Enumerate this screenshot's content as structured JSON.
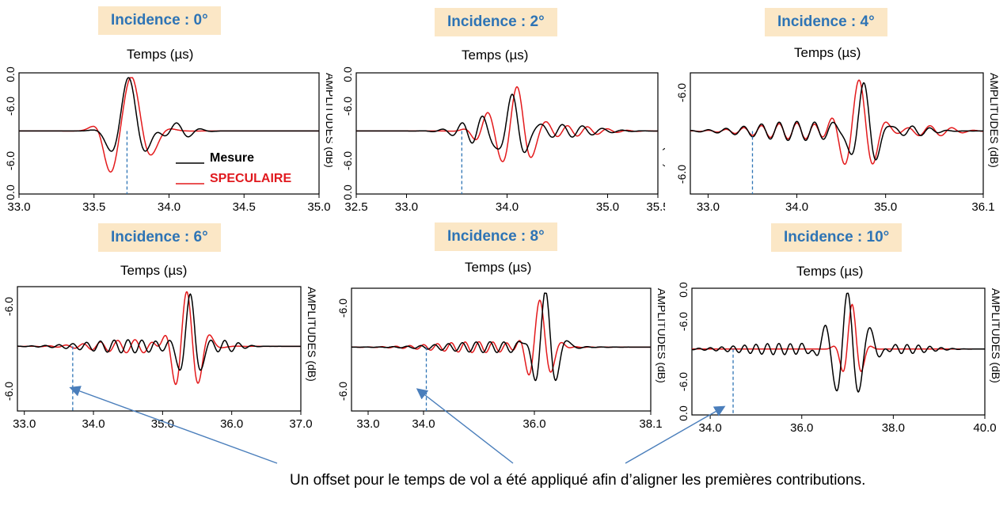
{
  "legend": {
    "mesure": "Mesure",
    "speculaire": "SPECULAIRE"
  },
  "colors": {
    "mesure": "#000000",
    "speculaire": "#e31a1c",
    "badge_bg": "#fbe7c6",
    "badge_text": "#2e74b5",
    "marker": "#2e74b5"
  },
  "footnote": "Un offset pour le temps de vol a été appliqué afin d’aligner les premières contributions.",
  "chart_data": [
    {
      "type": "line",
      "title": "Incidence : 0°",
      "xlabel": "Temps (µs)",
      "ylabel": "AMPLITUDES (dB)",
      "xlim": [
        33.0,
        35.0
      ],
      "xticks": [
        "33.0",
        "33.5",
        "34.0",
        "34.5",
        "35.0"
      ],
      "yticks": [
        "0.0",
        "-6.0",
        "-6.0",
        "0.0"
      ],
      "marker_x": 33.72,
      "legend": true
    },
    {
      "type": "line",
      "title": "Incidence : 2°",
      "xlabel": "Temps (µs)",
      "ylabel": "AMPLITUDES (dB)",
      "xlim": [
        32.5,
        35.5
      ],
      "xticks": [
        "32.5",
        "33.0",
        "34.0",
        "35.0",
        "35.5"
      ],
      "yticks": [
        "0.0",
        "-6.0",
        "-6.0",
        "0.0"
      ],
      "marker_x": 33.55
    },
    {
      "type": "line",
      "title": "Incidence : 4°",
      "xlabel": "Temps (µs)",
      "ylabel": "AMPLITUDES (dB)",
      "xlim": [
        32.8,
        36.1
      ],
      "xticks": [
        "33.0",
        "34.0",
        "35.0",
        "36.1"
      ],
      "yticks": [
        "-6.0",
        "-6.0"
      ],
      "marker_x": 33.5
    },
    {
      "type": "line",
      "title": "Incidence : 6°",
      "xlabel": "Temps (µs)",
      "ylabel": "AMPLITUDES (dB)",
      "xlim": [
        32.9,
        37.0
      ],
      "xticks": [
        "33.0",
        "34.0",
        "35.0",
        "36.0",
        "37.0"
      ],
      "yticks": [
        "-6.0",
        "-6.0"
      ],
      "marker_x": 33.7
    },
    {
      "type": "line",
      "title": "Incidence : 8°",
      "xlabel": "Temps (µs)",
      "ylabel": "AMPLITUDES (dB)",
      "xlim": [
        32.7,
        38.1
      ],
      "xticks": [
        "33.0",
        "34.0",
        "36.0",
        "38.1"
      ],
      "yticks": [
        "-6.0",
        "-6.0"
      ],
      "marker_x": 34.05
    },
    {
      "type": "line",
      "title": "Incidence : 10°",
      "xlabel": "Temps (µs)",
      "ylabel": "AMPLITUDES (dB)",
      "xlim": [
        33.6,
        40.0
      ],
      "xticks": [
        "34.0",
        "36.0",
        "38.0",
        "40.0"
      ],
      "yticks": [
        "0.0",
        "-6.0",
        "-6.0",
        "0.0"
      ],
      "marker_x": 34.5
    }
  ]
}
